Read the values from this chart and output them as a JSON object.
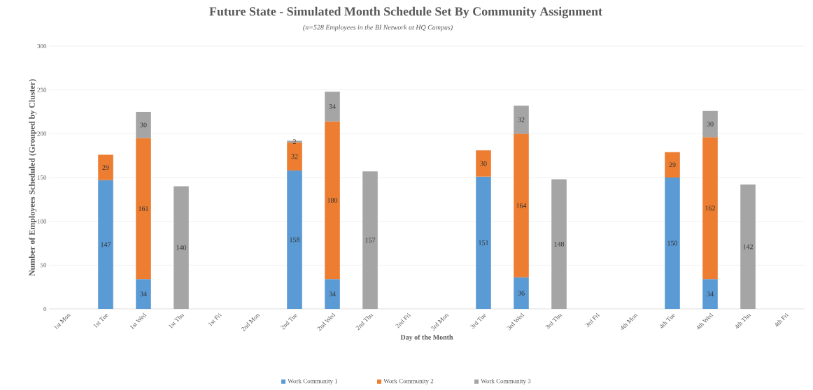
{
  "chart_data": {
    "type": "bar",
    "stacked": true,
    "title": "Future State - Simulated Month Schedule Set By Community Assignment",
    "subtitle": "(n=528 Employees in the BI Network at HQ Campus)",
    "xlabel": "Day of the Month",
    "ylabel": "Number of Employees Scheduled (Grouped by Cluster)",
    "categories": [
      "1st Mon",
      "1st Tue",
      "1st Wed",
      "1st Thu",
      "1st Fri",
      "2nd Mon",
      "2nd Tue",
      "2nd Wed",
      "2nd Thu",
      "2nd Fri",
      "3rd Mon",
      "3rd Tue",
      "3rd Wed",
      "3rd Thu",
      "3rd Fri",
      "4th Mon",
      "4th Tue",
      "4th Wed",
      "4th Thu",
      "4th Fri"
    ],
    "series": [
      {
        "name": "Work Community 1",
        "color": "#5b9bd5",
        "values": [
          null,
          147,
          34,
          null,
          null,
          null,
          158,
          34,
          null,
          null,
          null,
          151,
          36,
          null,
          null,
          null,
          150,
          34,
          null,
          null
        ]
      },
      {
        "name": "Work Community 2",
        "color": "#ed7d31",
        "values": [
          null,
          29,
          161,
          null,
          null,
          null,
          32,
          180,
          null,
          null,
          null,
          30,
          164,
          null,
          null,
          null,
          29,
          162,
          null,
          null
        ]
      },
      {
        "name": "Work Community 3",
        "color": "#a5a5a5",
        "values": [
          null,
          null,
          30,
          140,
          null,
          null,
          2,
          34,
          157,
          null,
          null,
          null,
          32,
          148,
          null,
          null,
          null,
          30,
          142,
          null
        ]
      }
    ],
    "data_labels": true,
    "ylim": [
      0,
      300
    ],
    "yticks": [
      0,
      50,
      100,
      150,
      200,
      250,
      300
    ],
    "grid": "y",
    "legend": "bottom"
  }
}
